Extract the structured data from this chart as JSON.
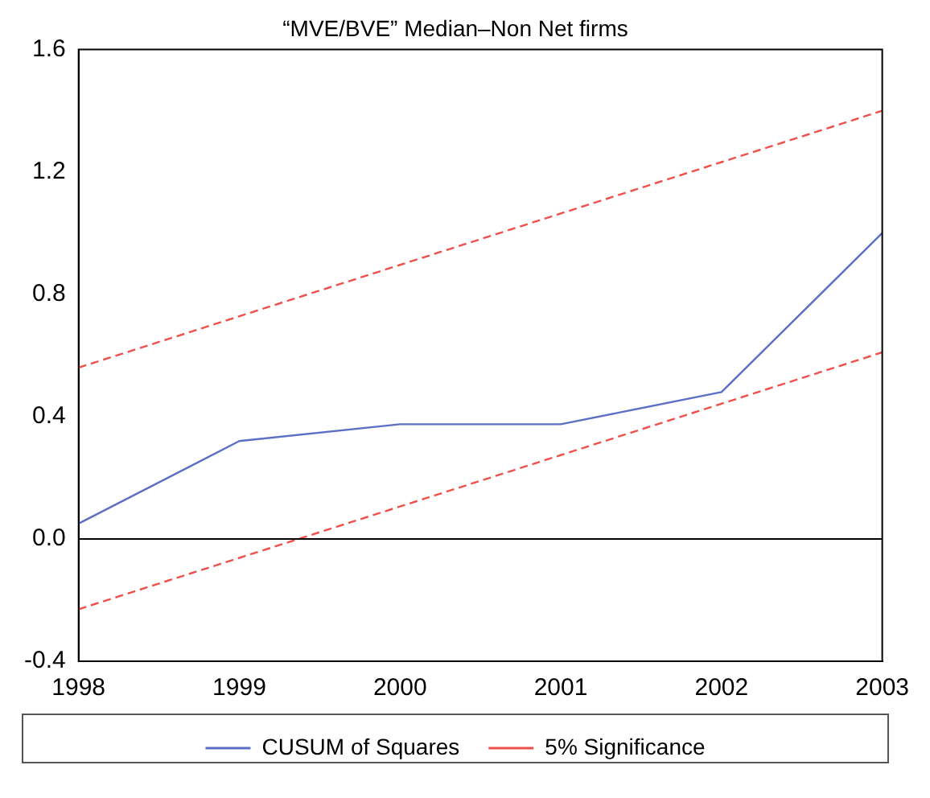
{
  "chart_data": {
    "type": "line",
    "title": "“MVE/BVE” Median–Non Net firms",
    "x": [
      1998,
      1999,
      2000,
      2001,
      2002,
      2003
    ],
    "series": [
      {
        "name": "CUSUM of Squares",
        "color": "#5b6fc4",
        "values": [
          0.05,
          0.32,
          0.375,
          0.375,
          0.48,
          1.0
        ],
        "line_style": "solid"
      },
      {
        "name": "5% Significance",
        "color": "#f0504a",
        "values": [
          0.56,
          0.728,
          0.896,
          1.064,
          1.232,
          1.4
        ],
        "line_style": "dashed"
      },
      {
        "color": "#f0504a",
        "values": [
          -0.23,
          -0.062,
          0.106,
          0.274,
          0.442,
          0.61
        ],
        "line_style": "dashed"
      }
    ],
    "xlim": [
      1998,
      2003
    ],
    "xticks": [
      1998,
      1999,
      2000,
      2001,
      2002,
      2003
    ],
    "ylim": [
      -0.4,
      1.6
    ],
    "yticks": [
      {
        "value": -0.4,
        "label": "-0.4"
      },
      {
        "value": 0,
        "label": "0.0"
      },
      {
        "value": 0.4,
        "label": "0.4"
      },
      {
        "value": 0.8,
        "label": "0.8"
      },
      {
        "value": 1.2,
        "label": "1.2"
      },
      {
        "value": 1.6,
        "label": "1.6"
      }
    ],
    "ref_lines": [
      {
        "axis": "y",
        "value": 0,
        "color": "#000000"
      }
    ],
    "grid": false,
    "legend": "bottom",
    "marker": "none"
  }
}
